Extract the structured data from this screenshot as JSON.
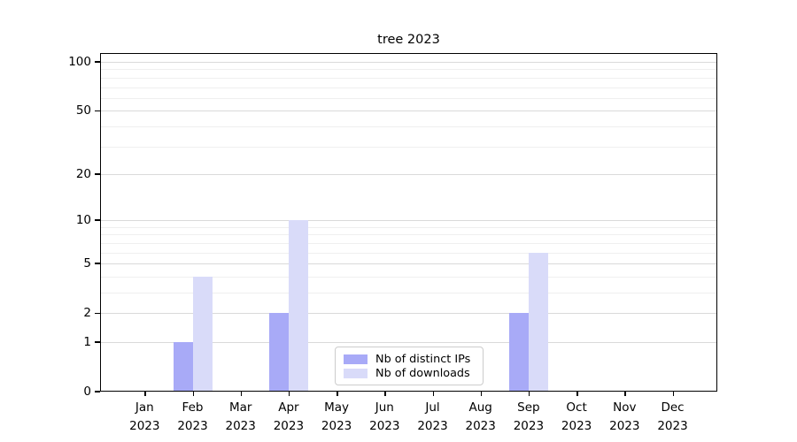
{
  "chart_data": {
    "type": "bar",
    "title": "tree 2023",
    "categories": [
      "Jan 2023",
      "Feb 2023",
      "Mar 2023",
      "Apr 2023",
      "May 2023",
      "Jun 2023",
      "Jul 2023",
      "Aug 2023",
      "Sep 2023",
      "Oct 2023",
      "Nov 2023",
      "Dec 2023"
    ],
    "series": [
      {
        "name": "Nb of distinct IPs",
        "color": "#a8aaf7",
        "values": [
          0,
          1,
          0,
          2,
          0,
          0,
          0,
          0,
          2,
          0,
          0,
          0
        ]
      },
      {
        "name": "Nb of downloads",
        "color": "#d9dbf9",
        "values": [
          0,
          4,
          0,
          10,
          0,
          0,
          0,
          0,
          6,
          0,
          0,
          0
        ]
      }
    ],
    "y_axis": {
      "scale": "log1p",
      "major_ticks": [
        0,
        1,
        2,
        5,
        10,
        20,
        50,
        100
      ],
      "tick_labels": [
        "0",
        "1",
        "2",
        "5",
        "10",
        "20",
        "50",
        "100"
      ],
      "minor_gridlines": [
        3,
        4,
        6,
        7,
        8,
        9,
        30,
        40,
        60,
        70,
        80,
        90
      ],
      "ylim": [
        0,
        113
      ]
    },
    "x_axis": {
      "year": "2023"
    },
    "legend": {
      "position": "lower-center-inside",
      "items": [
        "Nb of distinct IPs",
        "Nb of downloads"
      ]
    },
    "grid": true
  }
}
